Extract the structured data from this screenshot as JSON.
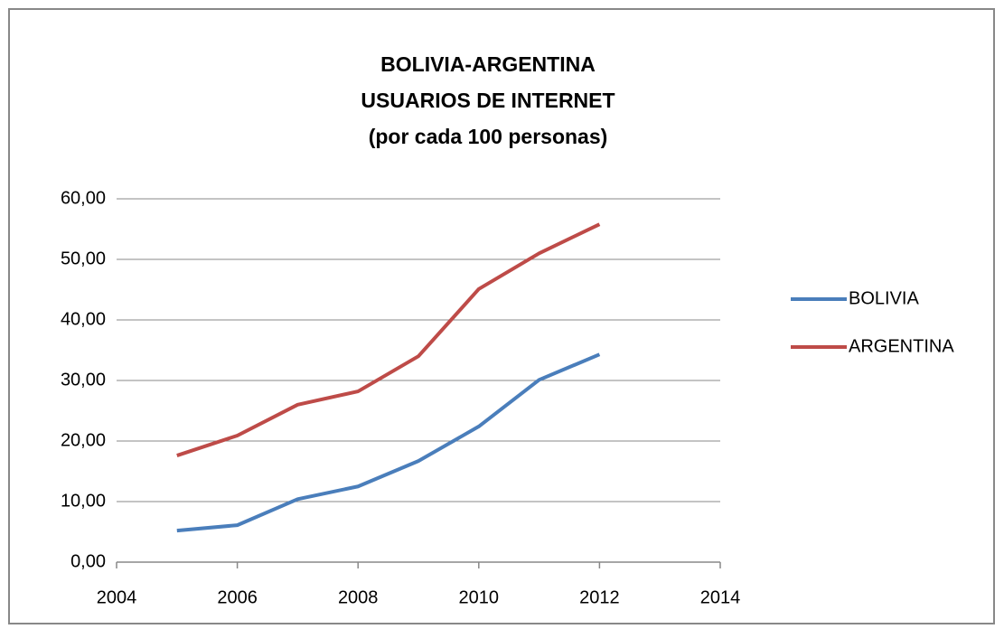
{
  "chart_data": {
    "type": "line",
    "title": [
      "BOLIVIA-ARGENTINA",
      "USUARIOS DE INTERNET",
      "(por cada 100 personas)"
    ],
    "x": [
      2005,
      2006,
      2007,
      2008,
      2009,
      2010,
      2011,
      2012
    ],
    "series": [
      {
        "name": "BOLIVIA",
        "color": "#4a7ebb",
        "values": [
          5.2,
          6.1,
          10.4,
          12.5,
          16.7,
          22.4,
          30.1,
          34.3
        ]
      },
      {
        "name": "ARGENTINA",
        "color": "#be4b48",
        "values": [
          17.6,
          20.9,
          26.0,
          28.2,
          34.0,
          45.1,
          51.0,
          55.8
        ]
      }
    ],
    "xlim": [
      2004,
      2014
    ],
    "xticks": [
      2004,
      2006,
      2008,
      2010,
      2012,
      2014
    ],
    "ylim": [
      0,
      60
    ],
    "yticks": [
      {
        "value": 0,
        "label": "0,00"
      },
      {
        "value": 10,
        "label": "10,00"
      },
      {
        "value": 20,
        "label": "20,00"
      },
      {
        "value": 30,
        "label": "30,00"
      },
      {
        "value": 40,
        "label": "40,00"
      },
      {
        "value": 50,
        "label": "50,00"
      },
      {
        "value": 60,
        "label": "60,00"
      }
    ],
    "grid": true,
    "legend": "right"
  }
}
